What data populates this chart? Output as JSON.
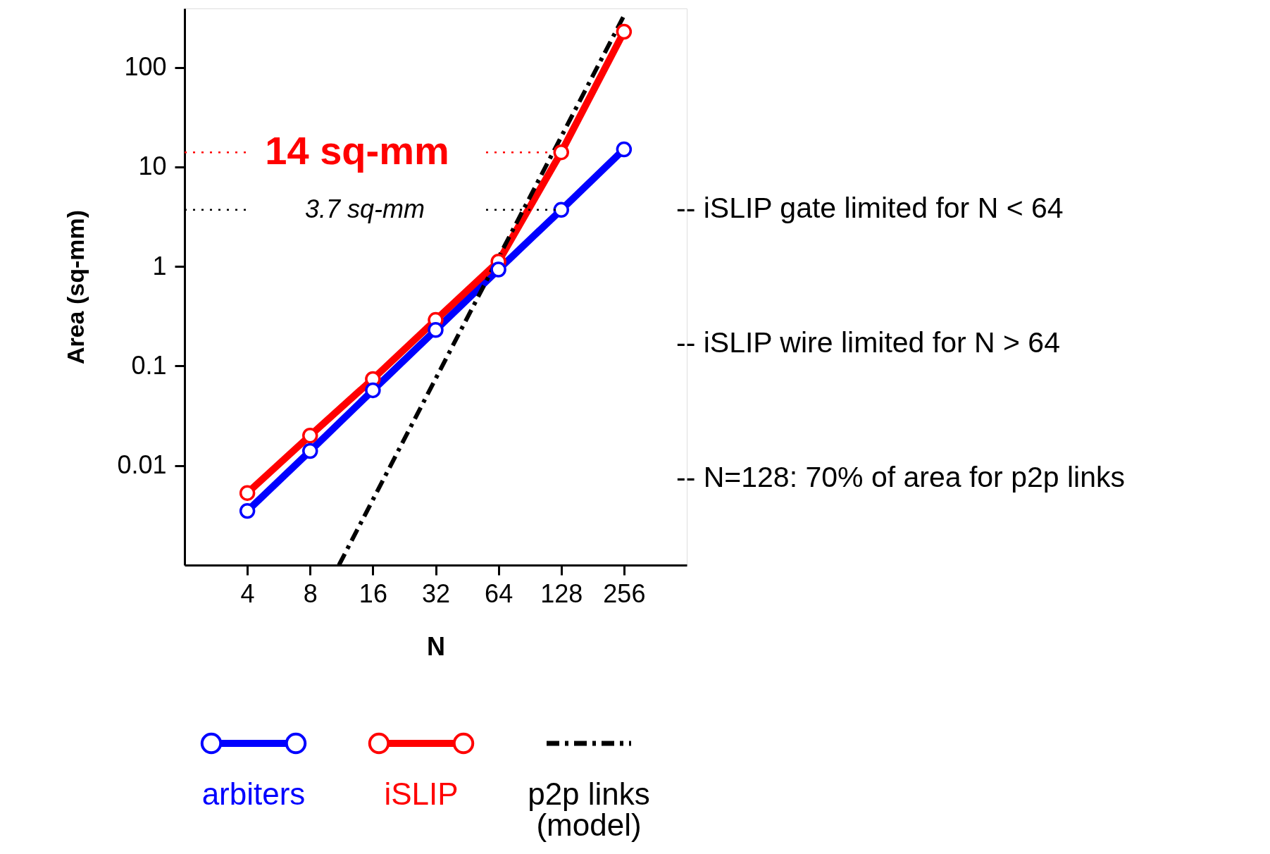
{
  "chart_data": {
    "type": "line",
    "xlabel": "N",
    "ylabel": "Area (sq-mm)",
    "log": "xy",
    "xlim": [
      2,
      512
    ],
    "ylim": [
      0.001,
      390
    ],
    "xticks": [
      4,
      8,
      16,
      32,
      64,
      128,
      256
    ],
    "yticks": [
      0.01,
      0.1,
      1,
      10,
      100
    ],
    "grid": false,
    "legend": "bottom",
    "marker": "circle",
    "x": [
      4,
      8,
      16,
      32,
      64,
      128,
      256
    ],
    "series": [
      {
        "name": "arbiters",
        "color": "#0000ff",
        "values": [
          0.0035,
          0.014,
          0.057,
          0.23,
          0.93,
          3.7,
          15
        ]
      },
      {
        "name": "iSLIP",
        "color": "#ff0000",
        "values": [
          0.0053,
          0.02,
          0.074,
          0.29,
          1.12,
          14,
          228
        ]
      },
      {
        "name": "p2p links\n(model)",
        "color": "#000000",
        "type": "line",
        "marker": "none",
        "line_style": "dashed",
        "x": [
          11,
          256
        ],
        "values": [
          0.001,
          330
        ]
      }
    ],
    "ref_lines": [
      {
        "axis": "y",
        "value": 14,
        "label": "14 sq-mm",
        "color": "#ff0000",
        "line_style": "dotted"
      },
      {
        "axis": "y",
        "value": 3.7,
        "label": "3.7 sq-mm",
        "color": "#000000",
        "line_style": "dotted"
      }
    ],
    "annotations": [
      "-- iSLIP gate limited for N < 64",
      "-- iSLIP wire limited for N > 64",
      "-- N=128: 70% of area for p2p links"
    ]
  }
}
